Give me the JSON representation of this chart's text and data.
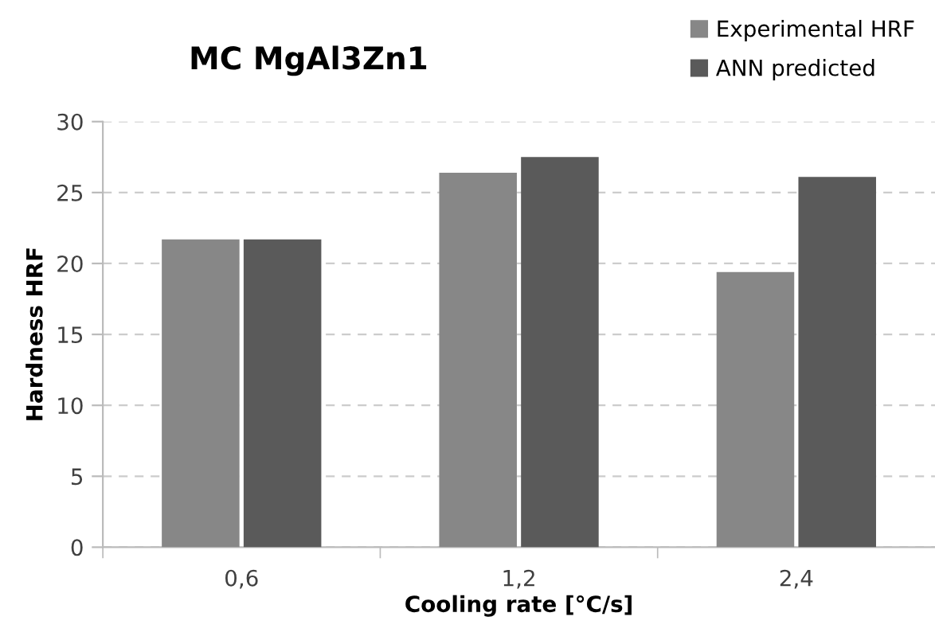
{
  "chart_data": {
    "type": "bar",
    "title": "MC MgAl3Zn1",
    "xlabel": "Cooling rate [°C/s]",
    "ylabel": "Hardness HRF",
    "categories": [
      "0,6",
      "1,2",
      "2,4"
    ],
    "series": [
      {
        "name": "Experimental HRF",
        "color": "#878787",
        "values": [
          21.7,
          26.4,
          19.4
        ]
      },
      {
        "name": "ANN predicted",
        "color": "#5a5a5a",
        "values": [
          21.7,
          27.5,
          26.1
        ]
      }
    ],
    "ylim": [
      0,
      30
    ],
    "yticks": [
      0,
      5,
      10,
      15,
      20,
      25,
      30
    ],
    "grid": "y",
    "legend": "top right"
  }
}
